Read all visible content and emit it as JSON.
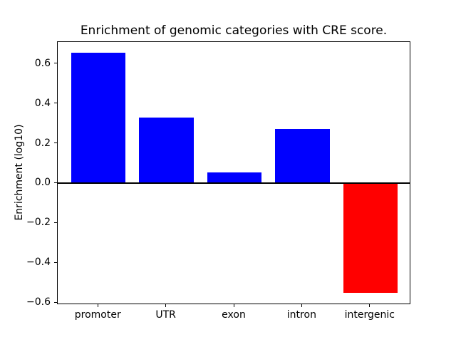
{
  "chart_data": {
    "type": "bar",
    "title": "Enrichment of genomic categories with CRE score.",
    "xlabel": "",
    "ylabel": "Enrichment (log10)",
    "categories": [
      "promoter",
      "UTR",
      "exon",
      "intron",
      "intergenic"
    ],
    "values": [
      0.655,
      0.33,
      0.055,
      0.275,
      -0.55
    ],
    "bar_colors": [
      "#0000ff",
      "#0000ff",
      "#0000ff",
      "#0000ff",
      "#ff0000"
    ],
    "positive_color": "#0000ff",
    "negative_color": "#ff0000",
    "yticks": [
      0.6,
      0.4,
      0.2,
      0.0,
      -0.2,
      -0.4,
      -0.6
    ],
    "ytick_labels": [
      "0.6",
      "0.4",
      "0.2",
      "0.0",
      "−0.2",
      "−0.4",
      "−0.6"
    ],
    "ylim": [
      -0.61,
      0.71
    ],
    "zero_line": true,
    "grid": false,
    "legend": null,
    "background_color": "#ffffff",
    "axis_color": "#000000"
  }
}
